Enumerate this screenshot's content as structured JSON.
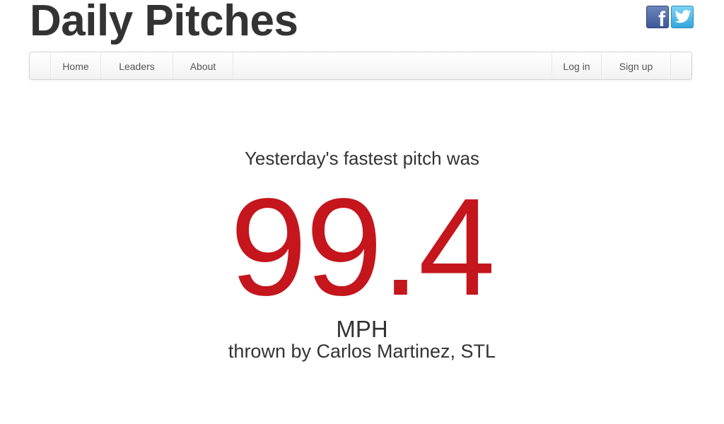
{
  "header": {
    "title": "Daily Pitches"
  },
  "social": {
    "facebook_icon": "facebook-icon",
    "facebook_glyph": "f",
    "twitter_icon": "twitter-bird-icon"
  },
  "nav": {
    "left": [
      {
        "label": "Home"
      },
      {
        "label": "Leaders"
      },
      {
        "label": "About"
      }
    ],
    "right": [
      {
        "label": "Log in"
      },
      {
        "label": "Sign up"
      }
    ]
  },
  "hero": {
    "intro": "Yesterday's fastest pitch was",
    "speed": "99.4",
    "unit": "MPH",
    "thrown_by": "thrown by Carlos Martinez, STL"
  },
  "colors": {
    "speed": "#c4161c",
    "text": "#333333",
    "facebook": "#3b5998",
    "twitter": "#33a7dd"
  }
}
